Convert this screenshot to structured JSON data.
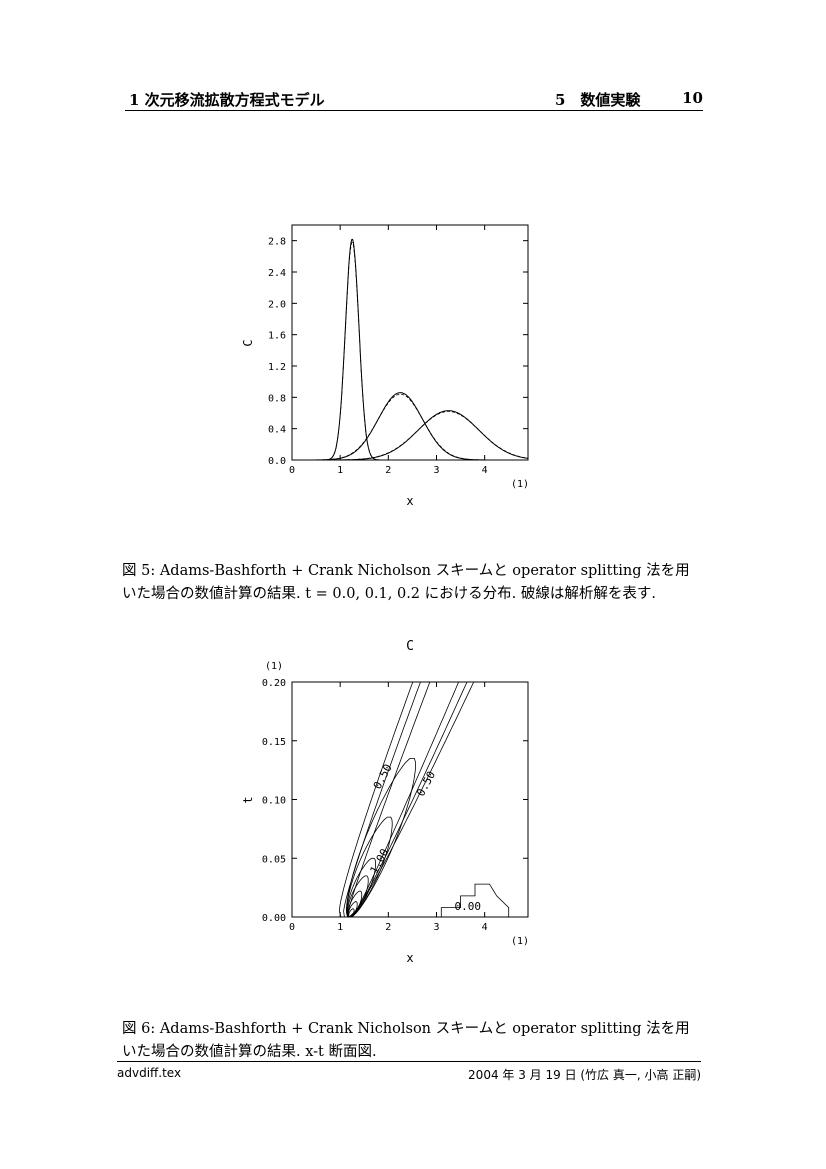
{
  "header": {
    "chapter": "1 次元移流拡散方程式モデル",
    "section": "5　数値実験",
    "page": "10"
  },
  "figure5": {
    "caption_line1": "図 5: Adams-Bashforth + Crank Nicholson スキームと operator splitting 法を用",
    "caption_line2": "いた場合の数値計算の結果. t = 0.0, 0.1, 0.2 における分布. 破線は解析解を表す."
  },
  "figure6": {
    "caption_line1": "図 6: Adams-Bashforth + Crank Nicholson スキームと operator splitting 法を用",
    "caption_line2": "いた場合の数値計算の結果. x-t 断面図."
  },
  "footer": {
    "file": "advdiff.tex",
    "date_author": "2004 年 3 月 19 日 (竹広 真一, 小高 正嗣)"
  },
  "chart_data": [
    {
      "type": "line",
      "title": "",
      "xlabel": "x",
      "ylabel": "C",
      "x_scale_note": "(1)",
      "xlim": [
        0,
        4.9
      ],
      "ylim": [
        0,
        3.0
      ],
      "xticks": [
        "0",
        "1",
        "2",
        "3",
        "4"
      ],
      "yticks": [
        "0.0",
        "0.4",
        "0.8",
        "1.2",
        "1.6",
        "2.0",
        "2.4",
        "2.8"
      ],
      "series": [
        {
          "style": "solid",
          "peak_x": 1.25,
          "peak_y": 2.82,
          "sigma": 0.14
        },
        {
          "style": "dashed",
          "peak_x": 1.25,
          "peak_y": 2.78,
          "sigma": 0.14
        },
        {
          "style": "solid",
          "peak_x": 2.25,
          "peak_y": 0.86,
          "sigma": 0.46
        },
        {
          "style": "dashed",
          "peak_x": 2.25,
          "peak_y": 0.84,
          "sigma": 0.47
        },
        {
          "style": "solid",
          "peak_x": 3.25,
          "peak_y": 0.63,
          "sigma": 0.63
        },
        {
          "style": "dashed",
          "peak_x": 3.25,
          "peak_y": 0.62,
          "sigma": 0.64
        }
      ]
    },
    {
      "type": "contour",
      "title": "C",
      "xlabel": "x",
      "ylabel": "t",
      "x_scale_note": "(1)",
      "y_scale_note": "(1)",
      "xlim": [
        0,
        4.9
      ],
      "ylim": [
        0,
        0.2
      ],
      "xticks": [
        "0",
        "1",
        "2",
        "3",
        "4"
      ],
      "yticks": [
        "0.00",
        "0.05",
        "0.10",
        "0.15",
        "0.20"
      ],
      "contour_labels": [
        {
          "text": "0.50",
          "x": 1.95,
          "t": 0.118
        },
        {
          "text": "0.50",
          "x": 2.85,
          "t": 0.112
        },
        {
          "text": "1.00",
          "x": 1.88,
          "t": 0.046
        },
        {
          "text": "0.00",
          "x": 3.65,
          "t": 0.006
        }
      ]
    }
  ]
}
